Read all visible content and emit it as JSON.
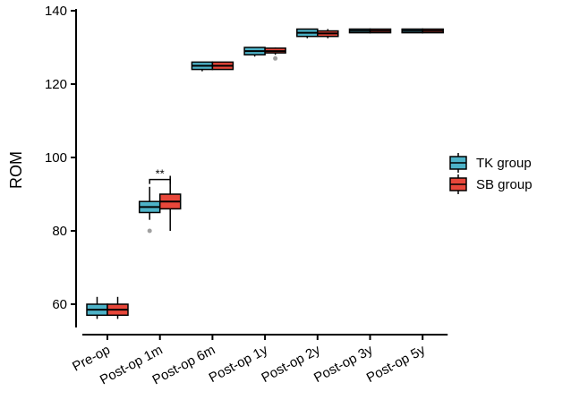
{
  "chart_data": {
    "type": "box",
    "ylabel": "ROM",
    "xlabel": "",
    "ylim": [
      54,
      140
    ],
    "yticks": [
      60,
      80,
      100,
      120,
      140
    ],
    "categories": [
      "Pre-op",
      "Post-op 1m",
      "Post-op 6m",
      "Post-op 1y",
      "Post-op 2y",
      "Post-op 3y",
      "Post-op 5y"
    ],
    "legend_position": "right",
    "series": [
      {
        "name": "TK group",
        "color": "#4db3c8",
        "boxes": [
          {
            "min": 56,
            "q1": 57,
            "median": 58.5,
            "q3": 60,
            "max": 62,
            "outliers": []
          },
          {
            "min": 83,
            "q1": 85,
            "median": 86.5,
            "q3": 88,
            "max": 92,
            "outliers": [
              80
            ]
          },
          {
            "min": 123.5,
            "q1": 124,
            "median": 125,
            "q3": 126,
            "max": 126,
            "outliers": []
          },
          {
            "min": 127.5,
            "q1": 128,
            "median": 129,
            "q3": 130,
            "max": 130,
            "outliers": []
          },
          {
            "min": 132.5,
            "q1": 133,
            "median": 134,
            "q3": 135,
            "max": 135,
            "outliers": []
          },
          {
            "min": 134,
            "q1": 134,
            "median": 134.5,
            "q3": 135,
            "max": 135,
            "outliers": []
          },
          {
            "min": 134,
            "q1": 134,
            "median": 134.5,
            "q3": 135,
            "max": 135,
            "outliers": []
          }
        ]
      },
      {
        "name": "SB group",
        "color": "#e8473a",
        "boxes": [
          {
            "min": 56,
            "q1": 57,
            "median": 58.5,
            "q3": 60,
            "max": 62,
            "outliers": []
          },
          {
            "min": 80,
            "q1": 86,
            "median": 88,
            "q3": 90,
            "max": 95,
            "outliers": []
          },
          {
            "min": 124,
            "q1": 124,
            "median": 125,
            "q3": 126,
            "max": 126,
            "outliers": []
          },
          {
            "min": 128,
            "q1": 128.5,
            "median": 129,
            "q3": 129.8,
            "max": 130,
            "outliers": [
              127
            ]
          },
          {
            "min": 132.5,
            "q1": 133,
            "median": 133.8,
            "q3": 134.5,
            "max": 135,
            "outliers": []
          },
          {
            "min": 134,
            "q1": 134,
            "median": 134.5,
            "q3": 135,
            "max": 135,
            "outliers": []
          },
          {
            "min": 134,
            "q1": 134,
            "median": 134.5,
            "q3": 135,
            "max": 135,
            "outliers": []
          }
        ]
      }
    ],
    "annotations": [
      {
        "category": "Post-op 1m",
        "text": "**",
        "y": 94
      }
    ],
    "outlier_color": "#a0a0a0"
  }
}
